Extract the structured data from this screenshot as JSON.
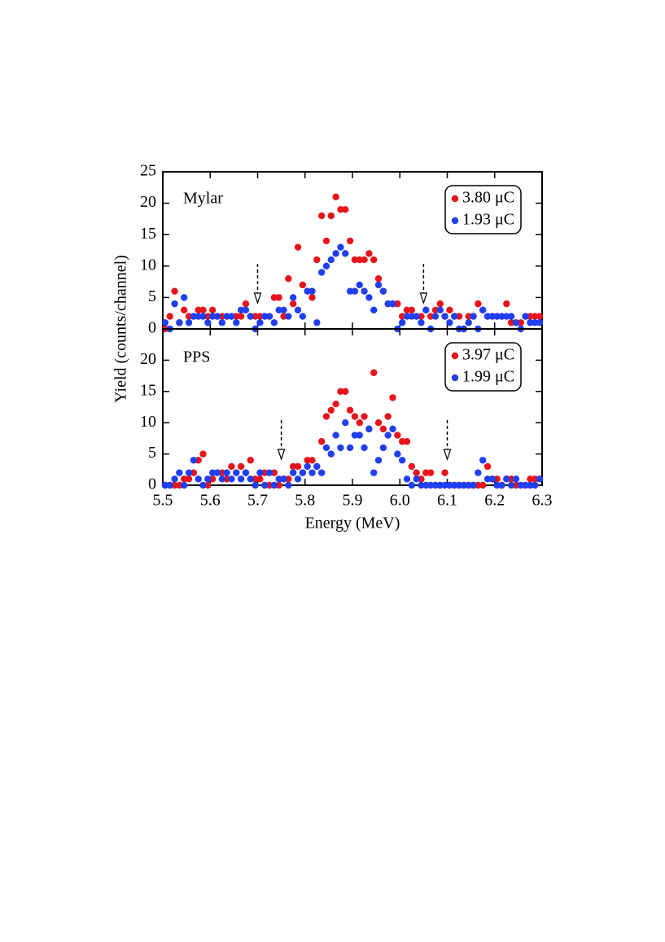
{
  "chart_data": [
    {
      "type": "scatter",
      "label": "Mylar",
      "ylabel": "Yield (counts/channel)",
      "xlim": [
        5.5,
        6.3
      ],
      "ylim": [
        0,
        25
      ],
      "yticks": [
        0,
        5,
        10,
        15,
        20,
        25
      ],
      "xticks": [
        5.5,
        5.6,
        5.7,
        5.8,
        5.9,
        {
          "value": 6,
          "label": "6.0"
        },
        6.1,
        6.2,
        6.3
      ],
      "arrows": [
        5.7,
        6.05
      ],
      "legend": "upper right",
      "x": [
        5.505,
        5.515,
        5.525,
        5.535,
        5.545,
        5.555,
        5.565,
        5.575,
        5.585,
        5.595,
        5.605,
        5.615,
        5.625,
        5.635,
        5.645,
        5.655,
        5.665,
        5.675,
        5.685,
        5.695,
        5.705,
        5.715,
        5.725,
        5.735,
        5.745,
        5.755,
        5.765,
        5.775,
        5.785,
        5.795,
        5.805,
        5.815,
        5.825,
        5.835,
        5.845,
        5.855,
        5.865,
        5.875,
        5.885,
        5.895,
        5.905,
        5.915,
        5.925,
        5.935,
        5.945,
        5.955,
        5.965,
        5.975,
        5.985,
        5.995,
        6.005,
        6.015,
        6.025,
        6.035,
        6.045,
        6.055,
        6.065,
        6.075,
        6.085,
        6.095,
        6.105,
        6.115,
        6.125,
        6.135,
        6.145,
        6.155,
        6.165,
        6.175,
        6.185,
        6.195,
        6.205,
        6.215,
        6.225,
        6.235,
        6.245,
        6.255,
        6.265,
        6.275,
        6.285,
        6.295
      ],
      "series": [
        {
          "name": "3.80 μC",
          "color": "#e8131b",
          "values": [
            0,
            2,
            6,
            1,
            3,
            2,
            2,
            3,
            3,
            2,
            3,
            2,
            2,
            2,
            2,
            2,
            2,
            4,
            2,
            2,
            2,
            2,
            2,
            5,
            5,
            2,
            8,
            4,
            13,
            7,
            6,
            5,
            11,
            18,
            14,
            18,
            21,
            19,
            19,
            14,
            11,
            11,
            11,
            12,
            11,
            8,
            6,
            4,
            4,
            4,
            2,
            3,
            3,
            2,
            2,
            3,
            2,
            3,
            4,
            2,
            3,
            2,
            2,
            0,
            2,
            2,
            4,
            3,
            2,
            2,
            2,
            2,
            4,
            1,
            1,
            1,
            2,
            2,
            2,
            2
          ]
        },
        {
          "name": "1.93 μC",
          "color": "#1f3ff0",
          "values": [
            1,
            0,
            4,
            1,
            5,
            1,
            2,
            2,
            2,
            1,
            2,
            2,
            1,
            2,
            2,
            1,
            3,
            3,
            2,
            0,
            1,
            2,
            2,
            1,
            3,
            3,
            2,
            5,
            3,
            2,
            6,
            6,
            1,
            9,
            10,
            11,
            12,
            13,
            12,
            6,
            6,
            7,
            6,
            5,
            3,
            7,
            6,
            4,
            4,
            0,
            1,
            2,
            2,
            2,
            1,
            3,
            0,
            2,
            3,
            2,
            1,
            2,
            0,
            0,
            1,
            2,
            0,
            3,
            2,
            2,
            2,
            2,
            2,
            2,
            1,
            0,
            2,
            1,
            1,
            1
          ]
        }
      ]
    },
    {
      "type": "scatter",
      "label": "PPS",
      "xlabel": "Energy (MeV)",
      "xlim": [
        5.5,
        6.3
      ],
      "ylim": [
        0,
        25
      ],
      "yticks": [
        0,
        5,
        10,
        15,
        20
      ],
      "xticks": [
        5.5,
        5.6,
        5.7,
        5.8,
        5.9,
        {
          "value": 6,
          "label": "6.0"
        },
        6.1,
        6.2,
        6.3
      ],
      "arrows": [
        5.75,
        6.1
      ],
      "legend": "upper right",
      "x": [
        5.505,
        5.515,
        5.525,
        5.535,
        5.545,
        5.555,
        5.565,
        5.575,
        5.585,
        5.595,
        5.605,
        5.615,
        5.625,
        5.635,
        5.645,
        5.655,
        5.665,
        5.675,
        5.685,
        5.695,
        5.705,
        5.715,
        5.725,
        5.735,
        5.745,
        5.755,
        5.765,
        5.775,
        5.785,
        5.795,
        5.805,
        5.815,
        5.825,
        5.835,
        5.845,
        5.855,
        5.865,
        5.875,
        5.885,
        5.895,
        5.905,
        5.915,
        5.925,
        5.935,
        5.945,
        5.955,
        5.965,
        5.975,
        5.985,
        5.995,
        6.005,
        6.015,
        6.025,
        6.035,
        6.045,
        6.055,
        6.065,
        6.075,
        6.085,
        6.095,
        6.105,
        6.115,
        6.125,
        6.135,
        6.145,
        6.155,
        6.165,
        6.175,
        6.185,
        6.195,
        6.205,
        6.215,
        6.225,
        6.235,
        6.245,
        6.255,
        6.265,
        6.275,
        6.285,
        6.295
      ],
      "series": [
        {
          "name": "3.97 μC",
          "color": "#e8131b",
          "values": [
            0,
            0,
            0,
            0,
            1,
            1,
            2,
            4,
            5,
            0,
            1,
            2,
            2,
            1,
            3,
            2,
            3,
            2,
            4,
            1,
            1,
            2,
            0,
            2,
            0,
            1,
            1,
            3,
            3,
            2,
            4,
            4,
            3,
            7,
            11,
            12,
            13,
            15,
            15,
            12,
            11,
            10,
            11,
            9,
            18,
            10,
            9,
            11,
            14,
            8,
            7,
            7,
            3,
            2,
            1,
            2,
            2,
            0,
            0,
            2,
            0,
            0,
            0,
            0,
            0,
            0,
            0,
            0,
            3,
            1,
            1,
            0,
            1,
            1,
            0,
            0,
            0,
            1,
            1,
            1
          ]
        },
        {
          "name": "1.99 μC",
          "color": "#1f3ff0",
          "values": [
            0,
            0,
            1,
            2,
            0,
            2,
            4,
            1,
            0,
            1,
            2,
            2,
            1,
            2,
            1,
            2,
            1,
            2,
            1,
            0,
            2,
            0,
            2,
            0,
            1,
            1,
            0,
            2,
            1,
            2,
            3,
            2,
            3,
            2,
            6,
            5,
            8,
            6,
            10,
            6,
            8,
            8,
            6,
            9,
            2,
            4,
            6,
            8,
            9,
            5,
            4,
            1,
            0,
            1,
            0,
            0,
            0,
            0,
            0,
            0,
            0,
            0,
            0,
            0,
            0,
            0,
            2,
            4,
            1,
            1,
            0,
            0,
            1,
            0,
            1,
            0,
            0,
            0,
            0,
            1
          ]
        }
      ]
    }
  ]
}
